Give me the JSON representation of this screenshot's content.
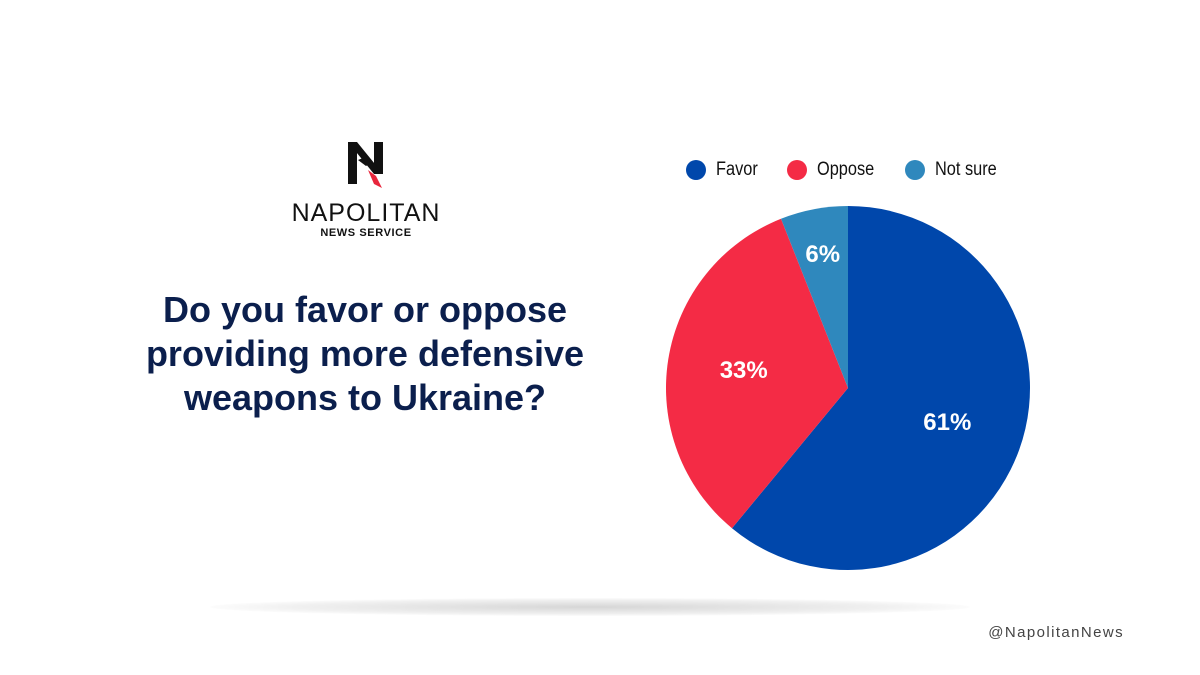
{
  "brand": {
    "name": "NAPOLITAN",
    "subtitle": "NEWS SERVICE",
    "logo_icon": "napolitan-n-logo-icon",
    "handle": "@NapolitanNews"
  },
  "colors": {
    "favor": "#0047ab",
    "oppose": "#f42b45",
    "not_sure": "#2f88bd",
    "question_text": "#0b1f4d"
  },
  "chart_data": {
    "type": "pie",
    "title": "Do you favor or oppose providing more defensive weapons to Ukraine?",
    "legend_position": "top",
    "slices": [
      {
        "name": "Favor",
        "value": 61,
        "label": "61%",
        "color": "#0047ab"
      },
      {
        "name": "Oppose",
        "value": 33,
        "label": "33%",
        "color": "#f42b45"
      },
      {
        "name": "Not sure",
        "value": 6,
        "label": "6%",
        "color": "#2f88bd"
      }
    ]
  }
}
